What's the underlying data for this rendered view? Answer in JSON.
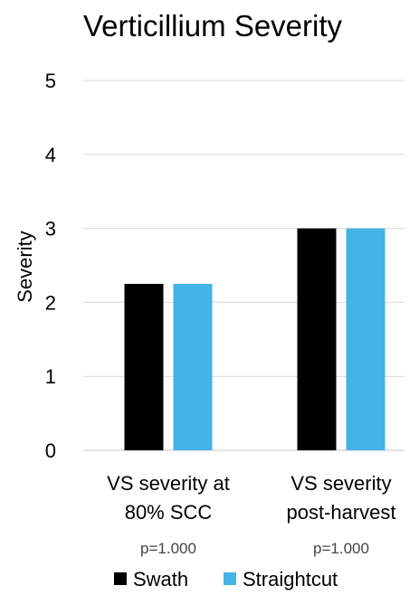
{
  "chart_data": {
    "type": "bar",
    "title": "Verticillium Severity",
    "xlabel": "",
    "ylabel": "Severity",
    "ylim": [
      0,
      5
    ],
    "yticks": [
      "0",
      "1",
      "2",
      "3",
      "4",
      "5"
    ],
    "categories": [
      {
        "lines": [
          "VS severity at",
          "80% SCC"
        ],
        "note": "p=1.000"
      },
      {
        "lines": [
          "VS severity",
          "post-harvest"
        ],
        "note": "p=1.000"
      }
    ],
    "series": [
      {
        "name": "Swath",
        "color": "#000000",
        "values": [
          2.25,
          3
        ]
      },
      {
        "name": "Straightcut",
        "color": "#44b3e6",
        "values": [
          2.25,
          3
        ]
      }
    ],
    "grid": true,
    "legend_position": "bottom"
  }
}
